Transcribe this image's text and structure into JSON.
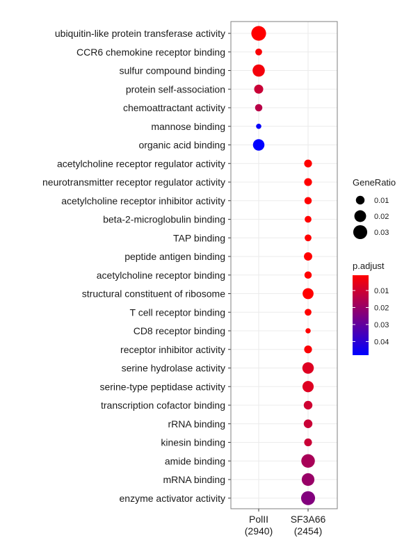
{
  "chart_data": {
    "type": "scatter",
    "title": "",
    "xlabel": "",
    "ylabel": "",
    "grid": true,
    "legend_placement": "right",
    "x_categories": [
      {
        "line1": "PolII",
        "line2": "(2940)"
      },
      {
        "line1": "SF3A66",
        "line2": "(2454)"
      }
    ],
    "y_categories": [
      "ubiquitin-like protein transferase activity",
      "CCR6 chemokine receptor binding",
      "sulfur compound binding",
      "protein self-association",
      "chemoattractant activity",
      "mannose binding",
      "organic acid binding",
      "acetylcholine receptor regulator activity",
      "neurotransmitter receptor regulator activity",
      "acetylcholine receptor inhibitor activity",
      "beta-2-microglobulin binding",
      "TAP binding",
      "peptide antigen binding",
      "acetylcholine receptor binding",
      "structural constituent of ribosome",
      "T cell receptor binding",
      "CD8 receptor binding",
      "receptor inhibitor activity",
      "serine hydrolase activity",
      "serine-type peptidase activity",
      "transcription cofactor binding",
      "rRNA binding",
      "kinesin binding",
      "amide binding",
      "mRNA binding",
      "enzyme activator activity"
    ],
    "points": [
      {
        "x": "PolII",
        "y": "ubiquitin-like protein transferase activity",
        "gene_ratio": 0.034,
        "p_adjust": 0.001
      },
      {
        "x": "PolII",
        "y": "CCR6 chemokine receptor binding",
        "gene_ratio": 0.006,
        "p_adjust": 0.002
      },
      {
        "x": "PolII",
        "y": "sulfur compound binding",
        "gene_ratio": 0.022,
        "p_adjust": 0.003
      },
      {
        "x": "PolII",
        "y": "protein self-association",
        "gene_ratio": 0.011,
        "p_adjust": 0.011
      },
      {
        "x": "PolII",
        "y": "chemoattractant activity",
        "gene_ratio": 0.007,
        "p_adjust": 0.014
      },
      {
        "x": "PolII",
        "y": "mannose binding",
        "gene_ratio": 0.004,
        "p_adjust": 0.047
      },
      {
        "x": "PolII",
        "y": "organic acid binding",
        "gene_ratio": 0.019,
        "p_adjust": 0.048
      },
      {
        "x": "SF3A66",
        "y": "acetylcholine receptor regulator activity",
        "gene_ratio": 0.008,
        "p_adjust": 0.001
      },
      {
        "x": "SF3A66",
        "y": "neurotransmitter receptor regulator activity",
        "gene_ratio": 0.008,
        "p_adjust": 0.001
      },
      {
        "x": "SF3A66",
        "y": "acetylcholine receptor inhibitor activity",
        "gene_ratio": 0.007,
        "p_adjust": 0.001
      },
      {
        "x": "SF3A66",
        "y": "beta-2-microglobulin binding",
        "gene_ratio": 0.006,
        "p_adjust": 0.001
      },
      {
        "x": "SF3A66",
        "y": "TAP binding",
        "gene_ratio": 0.006,
        "p_adjust": 0.001
      },
      {
        "x": "SF3A66",
        "y": "peptide antigen binding",
        "gene_ratio": 0.009,
        "p_adjust": 0.001
      },
      {
        "x": "SF3A66",
        "y": "acetylcholine receptor binding",
        "gene_ratio": 0.007,
        "p_adjust": 0.001
      },
      {
        "x": "SF3A66",
        "y": "structural constituent of ribosome",
        "gene_ratio": 0.017,
        "p_adjust": 0.001
      },
      {
        "x": "SF3A66",
        "y": "T cell receptor binding",
        "gene_ratio": 0.006,
        "p_adjust": 0.001
      },
      {
        "x": "SF3A66",
        "y": "CD8 receptor binding",
        "gene_ratio": 0.004,
        "p_adjust": 0.001
      },
      {
        "x": "SF3A66",
        "y": "receptor inhibitor activity",
        "gene_ratio": 0.008,
        "p_adjust": 0.002
      },
      {
        "x": "SF3A66",
        "y": "serine hydrolase activity",
        "gene_ratio": 0.019,
        "p_adjust": 0.007
      },
      {
        "x": "SF3A66",
        "y": "serine-type peptidase activity",
        "gene_ratio": 0.018,
        "p_adjust": 0.007
      },
      {
        "x": "SF3A66",
        "y": "transcription cofactor binding",
        "gene_ratio": 0.01,
        "p_adjust": 0.01
      },
      {
        "x": "SF3A66",
        "y": "rRNA binding",
        "gene_ratio": 0.01,
        "p_adjust": 0.011
      },
      {
        "x": "SF3A66",
        "y": "kinesin binding",
        "gene_ratio": 0.008,
        "p_adjust": 0.011
      },
      {
        "x": "SF3A66",
        "y": "amide binding",
        "gene_ratio": 0.028,
        "p_adjust": 0.017
      },
      {
        "x": "SF3A66",
        "y": "mRNA binding",
        "gene_ratio": 0.024,
        "p_adjust": 0.02
      },
      {
        "x": "SF3A66",
        "y": "enzyme activator activity",
        "gene_ratio": 0.03,
        "p_adjust": 0.024
      }
    ],
    "size_legend": {
      "title": "GeneRatio",
      "breaks": [
        0.01,
        0.02,
        0.03
      ],
      "labels": [
        "0.01",
        "0.02",
        "0.03"
      ]
    },
    "color_legend": {
      "title": "p.adjust",
      "range": [
        0.001,
        0.048
      ],
      "breaks": [
        0.01,
        0.02,
        0.03,
        0.04
      ],
      "labels": [
        "0.01",
        "0.02",
        "0.03",
        "0.04"
      ],
      "low_color": "#ff0000",
      "high_color": "#0000ff"
    },
    "colors": {
      "panel_border": "#7f7f7f",
      "grid": "#ebebeb",
      "text": "#1a1a1a"
    }
  }
}
